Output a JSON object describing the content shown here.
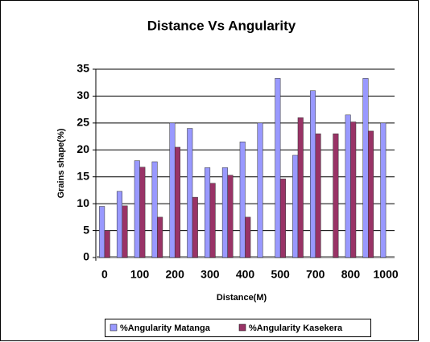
{
  "chart_data": {
    "type": "bar",
    "title": "Distance Vs Angularity",
    "x_label": "Distance(M)",
    "y_label": "Grains shape(%)",
    "categories": [
      "0",
      null,
      "100",
      null,
      "200",
      null,
      "300",
      null,
      "400",
      null,
      "500",
      null,
      "700",
      null,
      "800",
      null,
      "1000"
    ],
    "series": [
      {
        "name": "%Angularity Matanga",
        "color": "#9999ff",
        "values": [
          9.5,
          12.3,
          18,
          17.8,
          25,
          24,
          16.7,
          16.7,
          21.5,
          25,
          33.3,
          19,
          31,
          0,
          26.5,
          33.3,
          25
        ]
      },
      {
        "name": "%Angularity Kasekera",
        "color": "#993366",
        "values": [
          5,
          9.6,
          16.8,
          7.5,
          20.5,
          11.2,
          13.8,
          15.3,
          7.5,
          0,
          14.6,
          26,
          23,
          23,
          25.2,
          23.5,
          0
        ]
      }
    ],
    "ylim": [
      0,
      35
    ],
    "yticks": [
      0,
      5,
      10,
      15,
      20,
      25,
      30,
      35
    ],
    "grid": true,
    "legend": "bottom"
  }
}
